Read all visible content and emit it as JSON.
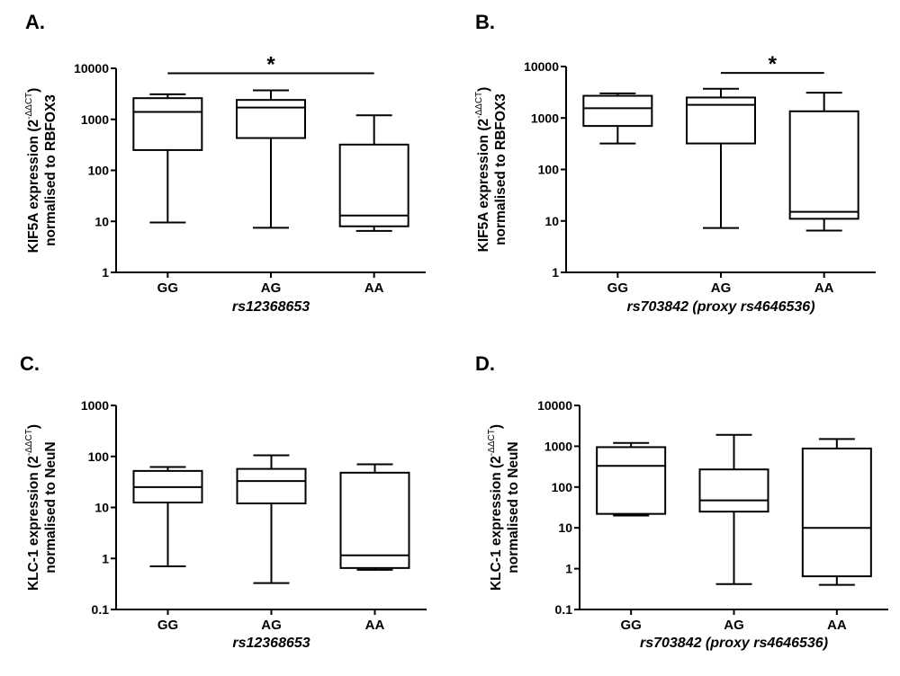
{
  "colors": {
    "line": "#000000",
    "box_fill": "#ffffff",
    "background": "#ffffff"
  },
  "chart_data": [
    {
      "type": "box",
      "panel_label": "A.",
      "ylabel_line1": "KIF5A expression (2",
      "ylabel_sup": "-ΔΔCT",
      "ylabel_close": ")",
      "ylabel_line2": "normalised to RBFOX3",
      "xlabel": "rs12368653",
      "yscale": "log",
      "ylim": [
        1,
        10000
      ],
      "yticks": [
        "1",
        "10",
        "100",
        "1000",
        "10000"
      ],
      "categories": [
        "GG",
        "AG",
        "AA"
      ],
      "boxes": [
        {
          "min": 9.5,
          "q1": 250,
          "median": 1400,
          "q3": 2600,
          "max": 3100
        },
        {
          "min": 7.5,
          "q1": 430,
          "median": 1700,
          "q3": 2400,
          "max": 3700
        },
        {
          "min": 6.5,
          "q1": 8,
          "median": 13,
          "q3": 320,
          "max": 1200
        }
      ],
      "significance": {
        "from": "GG",
        "to": "AA",
        "level": 8000,
        "label": "*"
      }
    },
    {
      "type": "box",
      "panel_label": "B.",
      "ylabel_line1": "KIF5A expression (2",
      "ylabel_sup": "-ΔΔCT",
      "ylabel_close": ")",
      "ylabel_line2": "normalised to RBFOX3",
      "xlabel": "rs703842 (proxy rs4646536)",
      "yscale": "log",
      "ylim": [
        1,
        10000
      ],
      "yticks": [
        "1",
        "10",
        "100",
        "1000",
        "10000"
      ],
      "categories": [
        "GG",
        "AG",
        "AA"
      ],
      "boxes": [
        {
          "min": 320,
          "q1": 700,
          "median": 1550,
          "q3": 2700,
          "max": 3000
        },
        {
          "min": 7.3,
          "q1": 320,
          "median": 1800,
          "q3": 2500,
          "max": 3700
        },
        {
          "min": 6.5,
          "q1": 11,
          "median": 15,
          "q3": 1350,
          "max": 3100
        }
      ],
      "significance": {
        "from": "AG",
        "to": "AA",
        "level": 7500,
        "label": "*"
      }
    },
    {
      "type": "box",
      "panel_label": "C.",
      "ylabel_line1": "KLC-1 expression (2",
      "ylabel_sup": "-ΔΔCT",
      "ylabel_close": ")",
      "ylabel_line2": "normalised to NeuN",
      "xlabel": "rs12368653",
      "yscale": "log",
      "ylim": [
        0.1,
        1000
      ],
      "yticks": [
        "0.1",
        "1",
        "10",
        "100",
        "1000"
      ],
      "categories": [
        "GG",
        "AG",
        "AA"
      ],
      "boxes": [
        {
          "min": 0.7,
          "q1": 12.5,
          "median": 25,
          "q3": 52,
          "max": 62
        },
        {
          "min": 0.33,
          "q1": 12,
          "median": 33,
          "q3": 57,
          "max": 105
        },
        {
          "min": 0.6,
          "q1": 0.65,
          "median": 1.15,
          "q3": 48,
          "max": 70
        }
      ]
    },
    {
      "type": "box",
      "panel_label": "D.",
      "ylabel_line1": "KLC-1 expression (2",
      "ylabel_sup": "-ΔΔCT",
      "ylabel_close": ")",
      "ylabel_line2": "normalised to NeuN",
      "xlabel": "rs703842 (proxy rs4646536)",
      "yscale": "log",
      "ylim": [
        0.1,
        10000
      ],
      "yticks": [
        "0.1",
        "1",
        "10",
        "100",
        "1000",
        "10000"
      ],
      "categories": [
        "GG",
        "AG",
        "AA"
      ],
      "boxes": [
        {
          "min": 20,
          "q1": 22,
          "median": 330,
          "q3": 950,
          "max": 1200
        },
        {
          "min": 0.42,
          "q1": 25,
          "median": 47,
          "q3": 270,
          "max": 1900
        },
        {
          "min": 0.4,
          "q1": 0.65,
          "median": 10,
          "q3": 880,
          "max": 1500
        }
      ]
    }
  ]
}
